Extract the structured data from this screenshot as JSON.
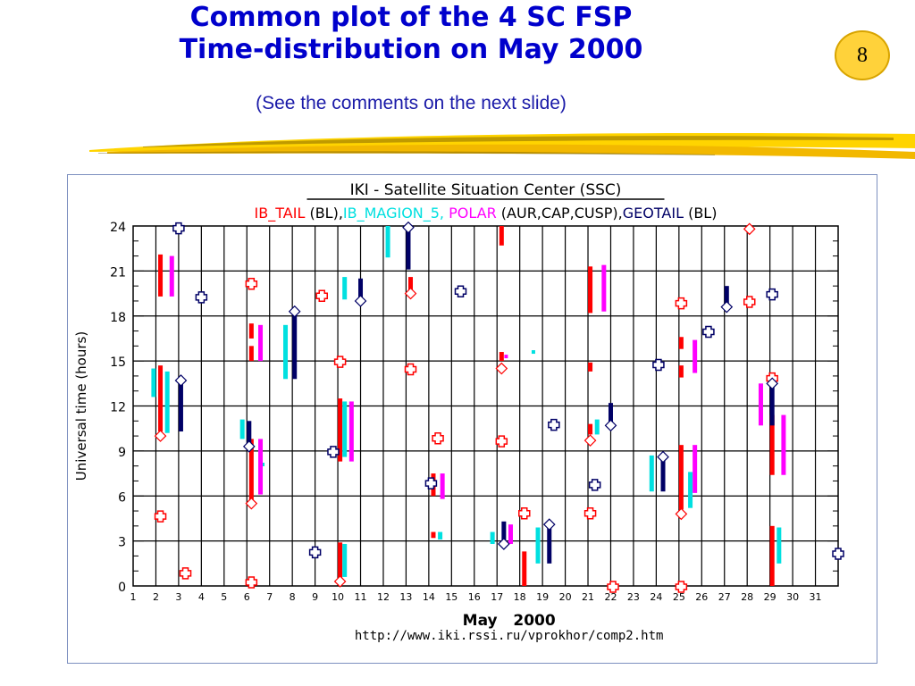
{
  "slide": {
    "title_line1": "Common plot of the 4 SC FSP",
    "title_line2": "Time-distribution on May 2000",
    "subtitle": "(See the comments on the next slide)",
    "page_number": "8"
  },
  "colors": {
    "title": "#0000cc",
    "ib_tail": "#ff0000",
    "ib_magion_5": "#00e0e0",
    "polar": "#ff00ff",
    "geotail": "#000066",
    "badge": "#ffd23a"
  },
  "chart_data": {
    "type": "scatter",
    "title": "IKI - Satellite Situation Center (SSC)",
    "legend": [
      {
        "name": "IB_TAIL",
        "suffix": " (BL),",
        "color": "#ff0000"
      },
      {
        "name": "IB_MAGION_5,",
        "suffix": " ",
        "color": "#00e0e0"
      },
      {
        "name": "POLAR",
        "suffix": " (AUR,CAP,CUSP),",
        "color": "#ff00ff"
      },
      {
        "name": "GEOTAIL",
        "suffix": " (BL)",
        "color": "#000066"
      }
    ],
    "ylabel": "Universal time (hours)",
    "xlabel": "May   2000",
    "url": "http://www.iki.rssi.ru/vprokhor/comp2.htm",
    "xlim": [
      1,
      32
    ],
    "ylim": [
      0,
      24
    ],
    "x_ticks": [
      "1",
      "2",
      "3",
      "4",
      "5",
      "6",
      "7",
      "8",
      "9",
      "10",
      "11",
      "12",
      "13",
      "14",
      "15",
      "16",
      "17",
      "18",
      "19",
      "20",
      "21",
      "22",
      "23",
      "24",
      "25",
      "26",
      "27",
      "28",
      "29",
      "30",
      "31"
    ],
    "y_ticks": [
      "0",
      "3",
      "6",
      "9",
      "12",
      "15",
      "18",
      "21",
      "24"
    ],
    "grid": true,
    "series": [
      {
        "name": "IB_TAIL",
        "bars": [
          [
            2.2,
            10.3,
            14.7
          ],
          [
            2.2,
            19.3,
            22.1
          ],
          [
            6.2,
            5.5,
            9.8
          ],
          [
            6.2,
            15,
            16
          ],
          [
            6.2,
            16.5,
            17.5
          ],
          [
            10.1,
            0.3,
            2.9
          ],
          [
            10.1,
            8.3,
            12.5
          ],
          [
            13.2,
            19.6,
            20.6
          ],
          [
            14.2,
            6,
            7.5
          ],
          [
            14.2,
            3.2,
            3.6
          ],
          [
            17.2,
            15,
            15.6
          ],
          [
            17.2,
            22.7,
            24
          ],
          [
            18.2,
            0,
            2.3
          ],
          [
            21.1,
            10.1,
            10.8
          ],
          [
            21.1,
            18.2,
            21.3
          ],
          [
            21.1,
            14.3,
            14.9
          ],
          [
            25.1,
            5.1,
            9.4
          ],
          [
            25.1,
            13.9,
            14.7
          ],
          [
            25.1,
            15.8,
            16.6
          ],
          [
            29.1,
            7.4,
            11.4
          ],
          [
            29.1,
            0,
            4
          ]
        ],
        "markers": [
          [
            2.2,
            4.7
          ],
          [
            3.3,
            0.9
          ],
          [
            6.2,
            20.2
          ],
          [
            6.2,
            0.3
          ],
          [
            9.3,
            19.4
          ],
          [
            10.1,
            15
          ],
          [
            13.2,
            14.5
          ],
          [
            14.4,
            9.9
          ],
          [
            17.2,
            9.7
          ],
          [
            18.2,
            4.9
          ],
          [
            21.1,
            4.9
          ],
          [
            22.1,
            0
          ],
          [
            25.1,
            0
          ],
          [
            25.1,
            18.9
          ],
          [
            28.1,
            19
          ],
          [
            29.1,
            13.9
          ]
        ]
      },
      {
        "name": "IB_MAGION_5",
        "bars": [
          [
            1.9,
            12.6,
            14.5
          ],
          [
            2.5,
            10.2,
            14.3
          ],
          [
            5.8,
            9.8,
            11.1
          ],
          [
            7.7,
            13.8,
            17.4
          ],
          [
            10.3,
            0.6,
            2.8
          ],
          [
            10.3,
            8.6,
            12.3
          ],
          [
            10.3,
            19.1,
            20.6
          ],
          [
            12.2,
            21.9,
            24
          ],
          [
            14.5,
            3.1,
            3.6
          ],
          [
            16.8,
            2.8,
            3.6
          ],
          [
            18.8,
            1.5,
            3.9
          ],
          [
            21.4,
            10.1,
            11.1
          ],
          [
            23.8,
            6.3,
            8.7
          ],
          [
            25.5,
            5.2,
            7.6
          ],
          [
            29.4,
            1.5,
            3.9
          ]
        ],
        "markers": [
          [
            6.7,
            8.1
          ],
          [
            18.6,
            15.6
          ]
        ]
      },
      {
        "name": "POLAR",
        "bars": [
          [
            2.7,
            19.3,
            22
          ],
          [
            6.6,
            6.1,
            9.8
          ],
          [
            6.6,
            15,
            17.4
          ],
          [
            10.6,
            8.3,
            12.3
          ],
          [
            14.6,
            5.8,
            7.5
          ],
          [
            17.6,
            2.8,
            4.1
          ],
          [
            21.7,
            18.3,
            21.4
          ],
          [
            25.7,
            6.2,
            9.4
          ],
          [
            25.7,
            14.2,
            16.4
          ],
          [
            28.6,
            10.7,
            13.5
          ],
          [
            29.6,
            7.4,
            11.4
          ]
        ],
        "markers": [
          [
            17.4,
            15.3
          ]
        ]
      },
      {
        "name": "GEOTAIL",
        "bars": [
          [
            3.1,
            10.3,
            13.7
          ],
          [
            6.1,
            9.3,
            11
          ],
          [
            8.1,
            13.8,
            18.3
          ],
          [
            11,
            19,
            20.5
          ],
          [
            13.1,
            21.1,
            23.9
          ],
          [
            17.3,
            2.8,
            4.3
          ],
          [
            19.3,
            1.5,
            4.1
          ],
          [
            22,
            10.7,
            12.2
          ],
          [
            24.3,
            6.3,
            8.6
          ],
          [
            27.1,
            18.6,
            20
          ],
          [
            29.1,
            10.7,
            13.5
          ]
        ],
        "markers": [
          [
            3,
            23.9
          ],
          [
            4,
            19.3
          ],
          [
            9,
            2.3
          ],
          [
            9.8,
            9
          ],
          [
            14.1,
            6.9
          ],
          [
            15.4,
            19.7
          ],
          [
            19.5,
            10.8
          ],
          [
            21.3,
            6.8
          ],
          [
            24.1,
            14.8
          ],
          [
            26.3,
            17
          ],
          [
            29.1,
            19.5
          ],
          [
            32,
            2.2
          ]
        ]
      }
    ]
  }
}
